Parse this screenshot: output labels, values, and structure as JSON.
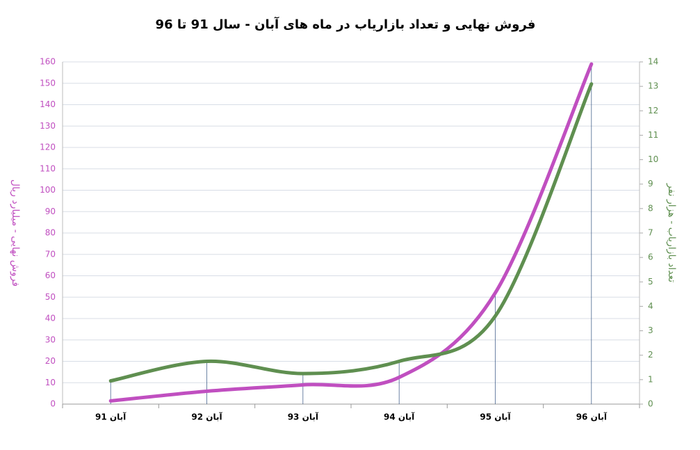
{
  "chart_data": {
    "type": "line",
    "title": "فروش نهایی و تعداد بازاریاب در ماه های آبان - سال 91 تا 96",
    "y_label": "فروش نهایی - میلیارد ریال",
    "y2_label": "تعداد بازاریاب - هزار نفر",
    "categories": [
      "آبان 91",
      "آبان 92",
      "آبان 93",
      "آبان 94",
      "آبان 95",
      "آبان 96"
    ],
    "series": [
      {
        "name": "فروش نهایی",
        "color": "#c04fc0",
        "values": [
          1.5,
          6,
          9,
          12.5,
          52,
          159
        ]
      },
      {
        "name": "تعداد بازاریاب",
        "color": "#5f8f50",
        "axis": "y2",
        "values": [
          0.95,
          1.75,
          1.25,
          1.75,
          3.6,
          13.1
        ]
      }
    ],
    "ylim": [
      0,
      160
    ],
    "yticks": [
      0,
      10,
      20,
      30,
      40,
      50,
      60,
      70,
      80,
      90,
      100,
      110,
      120,
      130,
      140,
      150,
      160
    ],
    "y2lim": [
      0,
      14
    ],
    "y2ticks": [
      0,
      1,
      2,
      3,
      4,
      5,
      6,
      7,
      8,
      9,
      10,
      11,
      12,
      13,
      14
    ],
    "grid": true,
    "smooth": true
  }
}
